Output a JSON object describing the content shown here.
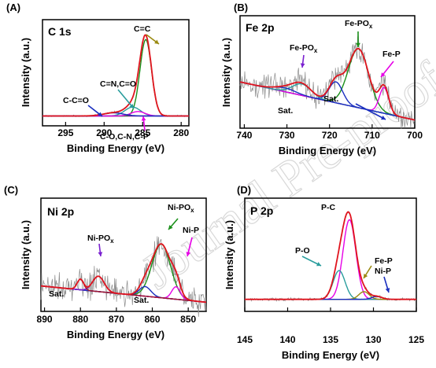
{
  "watermark": "Journal Pre-proof",
  "chart_data": [
    {
      "panel": "(A)",
      "title": "C 1s",
      "type": "line",
      "xlabel": "Binding Energy (eV)",
      "ylabel": "Intensity (a.u.)",
      "xlim": [
        298,
        279
      ],
      "x_ticks": [
        295,
        290,
        285,
        280
      ],
      "reversed_x": true,
      "background": 0.04,
      "components": [
        {
          "label": "C=C",
          "center": 284.6,
          "sigma": 0.75,
          "amp": 0.86,
          "color": "#1a8f1a"
        },
        {
          "label": "C=N,C=O",
          "center": 286.3,
          "sigma": 1.0,
          "amp": 0.1,
          "color": "#2a9d9d"
        },
        {
          "label": "C-O,C-N,C-P",
          "center": 285.6,
          "sigma": 0.9,
          "amp": 0.05,
          "color": "#e600e6"
        },
        {
          "label": "C-C=O",
          "center": 288.8,
          "sigma": 1.3,
          "amp": 0.035,
          "color": "#1a2fbf"
        }
      ],
      "annotations": [
        "C=C",
        "C=N,C=O",
        "C-C=O",
        "C-O,C-N,C-P"
      ]
    },
    {
      "panel": "(B)",
      "title": "Fe 2p",
      "type": "line",
      "xlabel": "Binding Energy (eV)",
      "ylabel": "Intensity (a.u.)",
      "xlim": [
        741,
        700
      ],
      "x_ticks": [
        740,
        730,
        720,
        710,
        700
      ],
      "reversed_x": true,
      "background_start": 0.42,
      "background_end": 0.02,
      "components": [
        {
          "label": "Fe-PO_x",
          "center": 713.2,
          "sigma": 2.4,
          "amp": 0.62,
          "color": "#1a8f1a"
        },
        {
          "label": "Sat.",
          "center": 718.5,
          "sigma": 1.6,
          "amp": 0.22,
          "color": "#1a2fbf"
        },
        {
          "label": "Fe-P",
          "center": 707.2,
          "sigma": 1.1,
          "amp": 0.27,
          "color": "#e600e6"
        },
        {
          "label": "Fe-PO_x",
          "center": 726.5,
          "sigma": 2.2,
          "amp": 0.12,
          "color": "#2a9d9d"
        },
        {
          "label": "Sat.",
          "center": 730.5,
          "sigma": 2.5,
          "amp": 0.04,
          "color": "#1a2fbf"
        }
      ],
      "annotations": [
        "Fe-PO_x",
        "Fe-PO_x",
        "Fe-P",
        "Sat.",
        "Sat."
      ]
    },
    {
      "panel": "(C)",
      "title": "Ni 2p",
      "type": "line",
      "xlabel": "Binding Energy (eV)",
      "ylabel": "Intensity (a.u.)",
      "xlim": [
        891,
        845
      ],
      "x_ticks": [
        890,
        880,
        870,
        860,
        850
      ],
      "reversed_x": true,
      "background_start": 0.2,
      "background_end": 0.03,
      "components": [
        {
          "label": "Ni-PO_x",
          "center": 857.5,
          "sigma": 2.6,
          "amp": 0.56,
          "color": "#1a8f1a"
        },
        {
          "label": "Ni-P",
          "center": 853.4,
          "sigma": 1.2,
          "amp": 0.13,
          "color": "#e600e6"
        },
        {
          "label": "Sat.",
          "center": 862.0,
          "sigma": 1.6,
          "amp": 0.1,
          "color": "#1a2fbf"
        },
        {
          "label": "Ni-PO_x",
          "center": 875.0,
          "sigma": 1.6,
          "amp": 0.16,
          "color": "#7a20d0"
        },
        {
          "label": "Sat.",
          "center": 880.0,
          "sigma": 0.9,
          "amp": 0.11,
          "color": "#a0182a"
        }
      ],
      "annotations": [
        "Ni-PO_x",
        "Ni-PO_x",
        "Ni-P",
        "Sat.",
        "Sat."
      ]
    },
    {
      "panel": "(D)",
      "title": "P 2p",
      "type": "line",
      "xlabel": "Binding Energy (eV)",
      "ylabel": "Intensity (a.u.)",
      "xlim": [
        145,
        125
      ],
      "x_ticks": [
        145,
        140,
        135,
        130,
        125
      ],
      "reversed_x": true,
      "background": 0.06,
      "components": [
        {
          "label": "P-C",
          "center": 132.8,
          "sigma": 0.75,
          "amp": 0.83,
          "color": "#e600e6"
        },
        {
          "label": "P-O",
          "center": 134.0,
          "sigma": 0.7,
          "amp": 0.3,
          "color": "#2a9d9d"
        },
        {
          "label": "Fe-P",
          "center": 131.1,
          "sigma": 0.6,
          "amp": 0.08,
          "color": "#9a8a10"
        },
        {
          "label": "Ni-P",
          "center": 129.6,
          "sigma": 0.6,
          "amp": 0.03,
          "color": "#1a2fbf"
        }
      ],
      "annotations": [
        "P-C",
        "P-O",
        "Fe-P",
        "Ni-P"
      ]
    }
  ],
  "colors": {
    "raw": "#8c8c8c",
    "envelope": "#e0141e",
    "baseline": "#7a1a8a"
  }
}
